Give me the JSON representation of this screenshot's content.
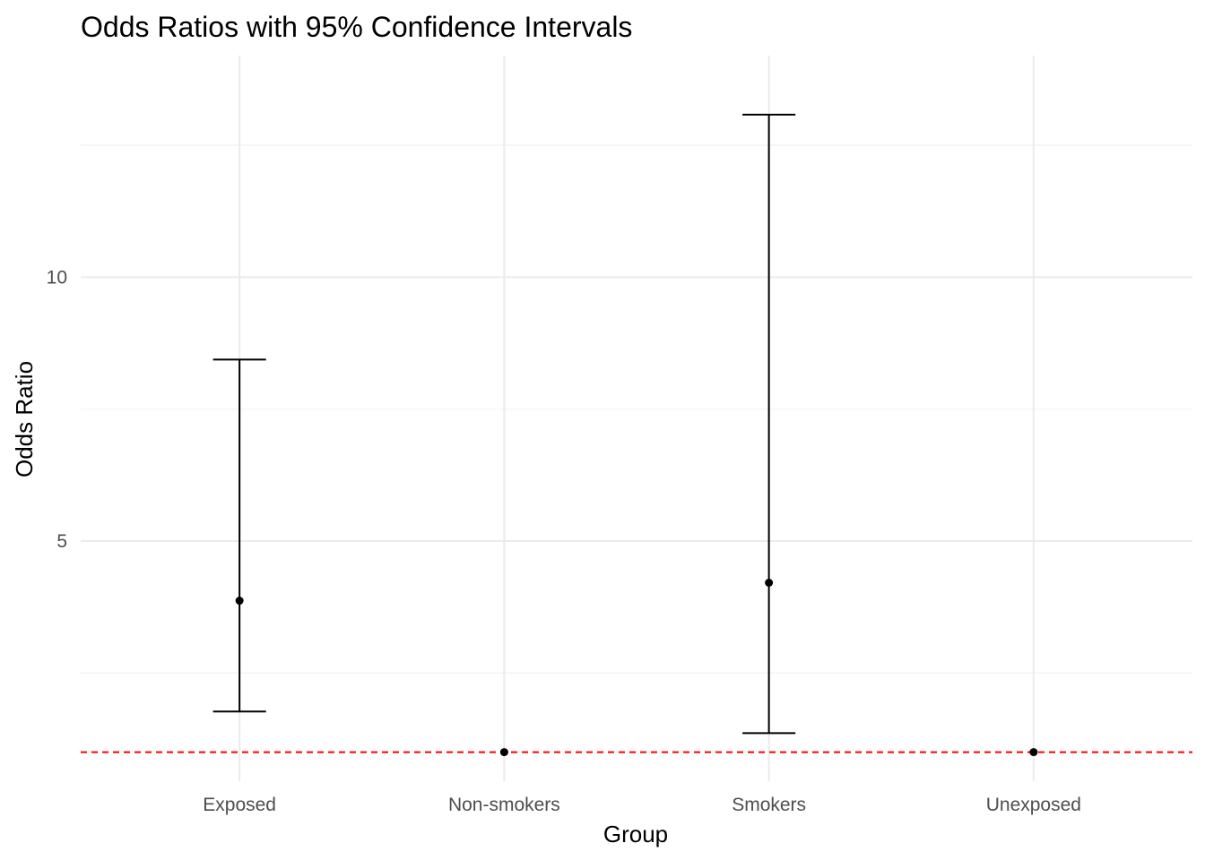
{
  "chart_data": {
    "type": "errorbar",
    "title": "Odds Ratios with 95% Confidence Intervals",
    "xlabel": "Group",
    "ylabel": "Odds Ratio",
    "categories": [
      "Exposed",
      "Non-smokers",
      "Smokers",
      "Unexposed"
    ],
    "points": [
      {
        "group": "Exposed",
        "or": 3.87,
        "lower": 1.77,
        "upper": 8.44
      },
      {
        "group": "Non-smokers",
        "or": 1.0,
        "lower": 1.0,
        "upper": 1.0
      },
      {
        "group": "Smokers",
        "or": 4.21,
        "lower": 1.36,
        "upper": 13.08
      },
      {
        "group": "Unexposed",
        "or": 1.0,
        "lower": 1.0,
        "upper": 1.0
      }
    ],
    "yticks": [
      5,
      10
    ],
    "ylim": [
      0.45,
      14.2
    ],
    "reference_line": {
      "y": 1,
      "color": "#ff0000",
      "style": "dashed"
    },
    "grid": true,
    "colors": {
      "points": "#000000",
      "errorbars": "#000000",
      "grid": "#ebebeb"
    }
  }
}
